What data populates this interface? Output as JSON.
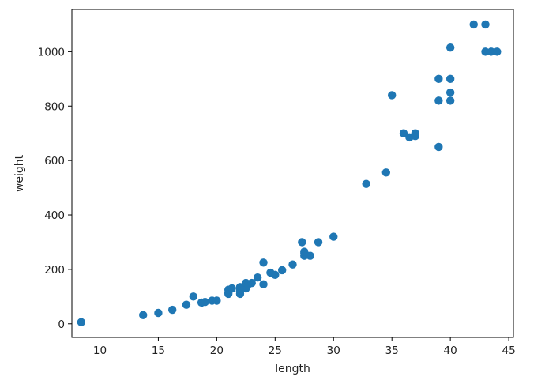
{
  "chart_data": {
    "type": "scatter",
    "title": "",
    "xlabel": "length",
    "ylabel": "weight",
    "xlim": [
      7.6,
      45.4
    ],
    "ylim": [
      -50,
      1155
    ],
    "xticks": [
      10,
      15,
      20,
      25,
      30,
      35,
      40,
      45
    ],
    "yticks": [
      0,
      200,
      400,
      600,
      800,
      1000
    ],
    "grid": false,
    "series": [
      {
        "color": "#1f77b4",
        "points": [
          [
            8.4,
            5.9
          ],
          [
            13.7,
            32
          ],
          [
            15.0,
            40
          ],
          [
            16.2,
            51.5
          ],
          [
            17.4,
            70
          ],
          [
            18.0,
            100
          ],
          [
            18.7,
            78
          ],
          [
            19.0,
            80
          ],
          [
            19.6,
            85
          ],
          [
            20.0,
            85
          ],
          [
            21.0,
            110
          ],
          [
            21.0,
            115
          ],
          [
            21.0,
            125
          ],
          [
            21.3,
            130
          ],
          [
            22.0,
            120
          ],
          [
            22.0,
            120
          ],
          [
            22.0,
            130
          ],
          [
            22.0,
            135
          ],
          [
            22.0,
            110
          ],
          [
            22.5,
            130
          ],
          [
            22.5,
            150
          ],
          [
            22.7,
            145
          ],
          [
            23.0,
            150
          ],
          [
            23.5,
            170
          ],
          [
            24.0,
            225
          ],
          [
            24.0,
            145
          ],
          [
            24.6,
            188
          ],
          [
            25.0,
            180
          ],
          [
            25.6,
            197
          ],
          [
            26.5,
            218
          ],
          [
            27.3,
            300
          ],
          [
            27.5,
            260
          ],
          [
            27.5,
            265
          ],
          [
            27.5,
            250
          ],
          [
            28.0,
            250
          ],
          [
            28.7,
            300
          ],
          [
            30.0,
            320
          ],
          [
            32.8,
            514
          ],
          [
            34.5,
            556
          ],
          [
            35.0,
            840
          ],
          [
            36.5,
            685
          ],
          [
            36.0,
            700
          ],
          [
            37.0,
            700
          ],
          [
            37.0,
            690
          ],
          [
            39.0,
            900
          ],
          [
            39.0,
            650
          ],
          [
            39.0,
            820
          ],
          [
            40.0,
            850
          ],
          [
            40.0,
            900
          ],
          [
            40.0,
            1015
          ],
          [
            40.0,
            820
          ],
          [
            42.0,
            1100
          ],
          [
            43.0,
            1000
          ],
          [
            43.0,
            1100
          ],
          [
            43.5,
            1000
          ],
          [
            44.0,
            1000
          ]
        ]
      }
    ]
  }
}
